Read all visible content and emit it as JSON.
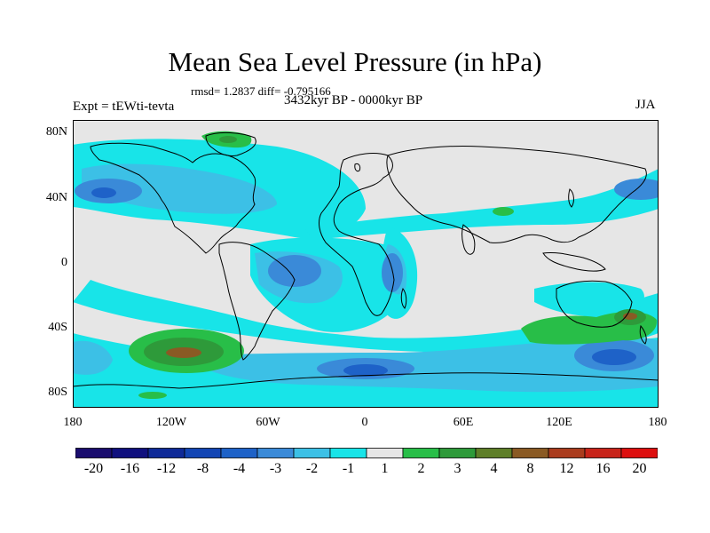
{
  "title": "Mean Sea Level Pressure (in hPa)",
  "stats": "rmsd= 1.2837 diff= -0.795166",
  "experiment": "Expt = tEWti-tevta",
  "period": "3432kyr BP - 0000kyr BP",
  "season": "JJA",
  "lat_labels": [
    "80N",
    "40N",
    "0",
    "40S",
    "80S"
  ],
  "lon_labels": [
    "180",
    "120W",
    "60W",
    "0",
    "60E",
    "120E",
    "180"
  ],
  "colorbar": {
    "labels": [
      "-20",
      "-16",
      "-12",
      "-8",
      "-4",
      "-3",
      "-2",
      "-1",
      "1",
      "2",
      "3",
      "4",
      "8",
      "12",
      "16",
      "20"
    ],
    "colors": [
      "#1a0d6e",
      "#10107e",
      "#0f2a98",
      "#1245b4",
      "#1e62c8",
      "#3a8ad8",
      "#3cc0e6",
      "#18e4e8",
      "#e6e6e6",
      "#28be48",
      "#2e9a3a",
      "#5e7e28",
      "#8a5a24",
      "#aa3c1e",
      "#c8241a",
      "#dd0f0f"
    ]
  },
  "colors": {
    "neutral": "#e6e6e6",
    "cyan": "#18e4e8",
    "light_blue": "#3cc0e6",
    "mid_blue": "#3a8ad8",
    "blue": "#1e62c8",
    "green": "#28be48",
    "dark_green": "#2e9a3a",
    "brown": "#8a5a24",
    "coast": "#000000"
  }
}
